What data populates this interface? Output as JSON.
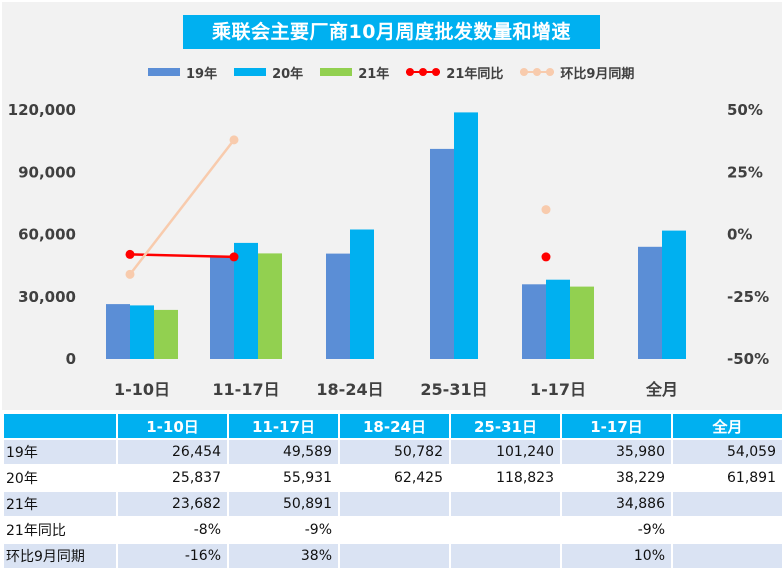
{
  "chart_data": {
    "type": "bar",
    "title": "乘联会主要厂商10月周度批发数量和增速",
    "categories": [
      "1-10日",
      "11-17日",
      "18-24日",
      "25-31日",
      "1-17日",
      "全月"
    ],
    "series": [
      {
        "name": "19年",
        "kind": "bar",
        "color": "#5b8ed6",
        "values": [
          26454,
          49589,
          50782,
          101240,
          35980,
          54059
        ]
      },
      {
        "name": "20年",
        "kind": "bar",
        "color": "#00b0f0",
        "values": [
          25837,
          55931,
          62425,
          118823,
          38229,
          61891
        ]
      },
      {
        "name": "21年",
        "kind": "bar",
        "color": "#92d050",
        "values": [
          23682,
          50891,
          null,
          null,
          34886,
          null
        ]
      },
      {
        "name": "21年同比",
        "kind": "line",
        "axis": "right",
        "color": "#ff0000",
        "values": [
          -8,
          -9,
          null,
          null,
          -9,
          null
        ]
      },
      {
        "name": "环比9月同期",
        "kind": "line",
        "axis": "right",
        "color": "#f8cbad",
        "values": [
          -16,
          38,
          null,
          null,
          10,
          null
        ]
      }
    ],
    "ylim": [
      0,
      120000
    ],
    "y_ticks": [
      "0",
      "30,000",
      "60,000",
      "90,000",
      "120,000"
    ],
    "y2lim": [
      -50,
      50
    ],
    "y2_ticks": [
      "-50%",
      "-25%",
      "0%",
      "25%",
      "50%"
    ],
    "legend_position": "top",
    "grid": false
  },
  "table": {
    "columns": [
      "1-10日",
      "11-17日",
      "18-24日",
      "25-31日",
      "1-17日",
      "全月"
    ],
    "rows": [
      {
        "label": "19年",
        "cells": [
          "26,454",
          "49,589",
          "50,782",
          "101,240",
          "35,980",
          "54,059"
        ]
      },
      {
        "label": "20年",
        "cells": [
          "25,837",
          "55,931",
          "62,425",
          "118,823",
          "38,229",
          "61,891"
        ]
      },
      {
        "label": "21年",
        "cells": [
          "23,682",
          "50,891",
          "",
          "",
          "34,886",
          ""
        ]
      },
      {
        "label": "21年同比",
        "cells": [
          "-8%",
          "-9%",
          "",
          "",
          "-9%",
          ""
        ]
      },
      {
        "label": "环比9月同期",
        "cells": [
          "-16%",
          "38%",
          "",
          "",
          "10%",
          ""
        ]
      }
    ]
  }
}
